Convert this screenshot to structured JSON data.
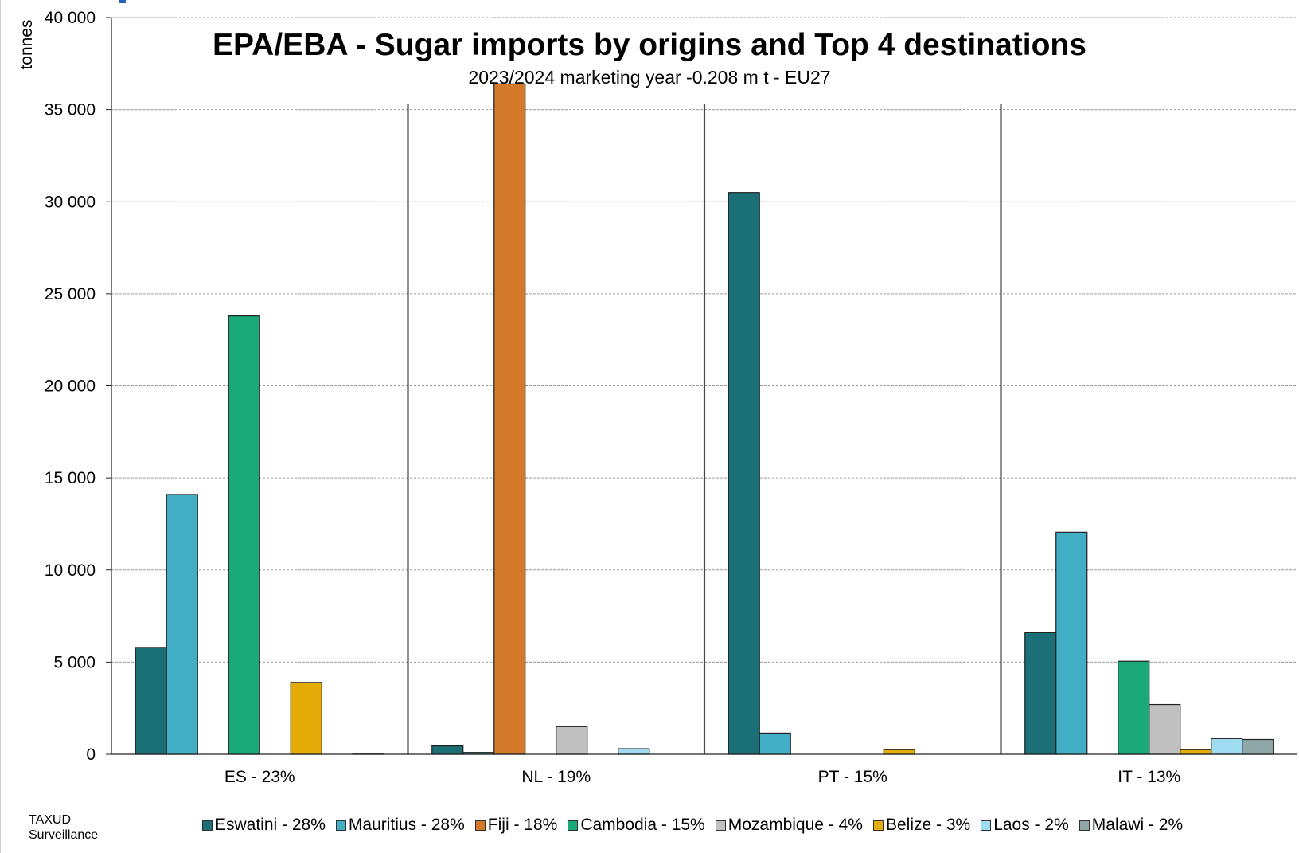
{
  "chart_data": {
    "type": "bar",
    "title": "EPA/EBA - Sugar imports by origins and Top 4 destinations",
    "subtitle": "2023/2024 marketing  year -0.208 m t - EU27",
    "ylabel": "tonnes",
    "xlabel": "",
    "ylim": [
      0,
      40000
    ],
    "y_ticks": [
      0,
      5000,
      10000,
      15000,
      20000,
      25000,
      30000,
      35000,
      40000
    ],
    "y_tick_labels": [
      "0",
      "5 000",
      "10 000",
      "15 000",
      "20 000",
      "25 000",
      "30 000",
      "35 000",
      "40 000"
    ],
    "grid": true,
    "legend_position": "bottom",
    "categories": [
      "ES - 23%",
      "NL - 19%",
      "PT - 15%",
      "IT - 13%"
    ],
    "series": [
      {
        "name": "Eswatini - 28%",
        "color": "#1b7078",
        "values": [
          5800,
          450,
          30500,
          6600
        ]
      },
      {
        "name": "Mauritius - 28%",
        "color": "#41aec5",
        "values": [
          14100,
          100,
          1150,
          12050
        ]
      },
      {
        "name": "Fiji - 18%",
        "color": "#d27a2a",
        "values": [
          0,
          36400,
          0,
          0
        ]
      },
      {
        "name": "Cambodia - 15%",
        "color": "#1aaa7a",
        "values": [
          23800,
          0,
          0,
          5050
        ]
      },
      {
        "name": "Mozambique - 4%",
        "color": "#c0c0c0",
        "values": [
          0,
          1500,
          0,
          2700
        ]
      },
      {
        "name": "Belize - 3%",
        "color": "#e4ac08",
        "values": [
          3900,
          0,
          250,
          250
        ]
      },
      {
        "name": "Laos - 2%",
        "color": "#9fdcf1",
        "values": [
          0,
          300,
          0,
          850
        ]
      },
      {
        "name": "Malawi - 2%",
        "color": "#8fa7a7",
        "values": [
          60,
          0,
          0,
          800
        ]
      }
    ]
  },
  "footer": {
    "source_line1": "TAXUD",
    "source_line2": "Surveillance"
  }
}
